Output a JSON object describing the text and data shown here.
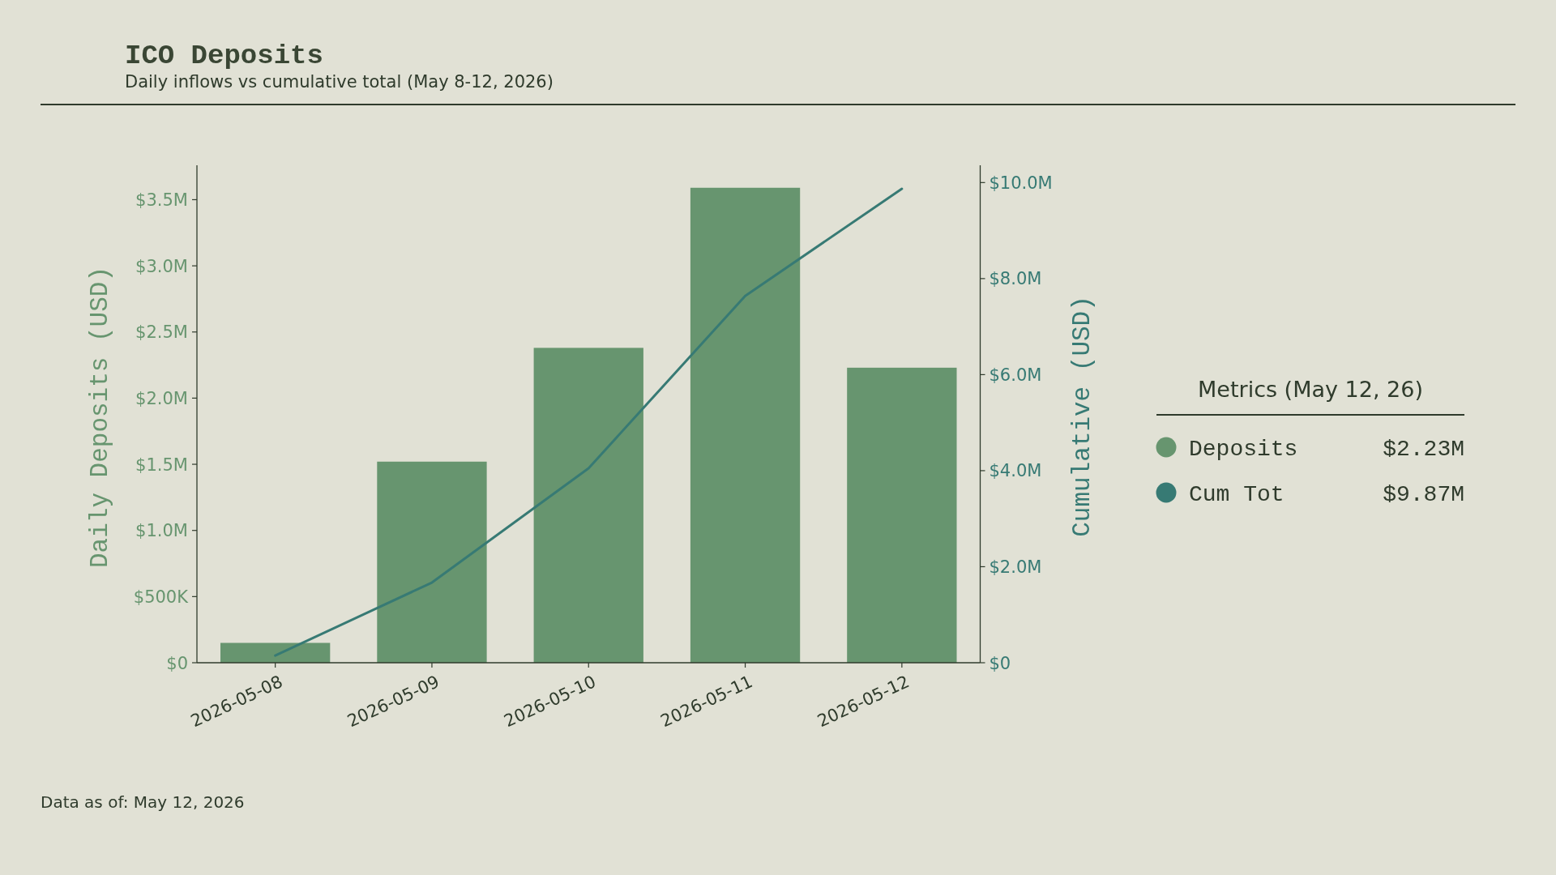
{
  "chart_data": {
    "type": "bar",
    "title": "ICO Deposits",
    "subtitle": "Daily inflows vs cumulative total (May 8-12, 2026)",
    "ylabel": "Daily Deposits (USD)",
    "y2label": "Cumulative (USD)",
    "legend_title": "Metrics (May 12, 26)",
    "categories": [
      "2026-05-08",
      "2026-05-09",
      "2026-05-10",
      "2026-05-11",
      "2026-05-12"
    ],
    "series": [
      {
        "name": "Deposits",
        "color": "#67956f",
        "values": [
          150000,
          1520000,
          2380000,
          3590000,
          2230000
        ]
      },
      {
        "name": "Cum Tot",
        "type": "line",
        "axis": "y2",
        "color": "#377a74",
        "values": [
          150000,
          1670000,
          4050000,
          7640000,
          9870000
        ]
      }
    ],
    "ylim": [
      0,
      3760000
    ],
    "yticks": [
      {
        "value": 0,
        "label": "$0"
      },
      {
        "value": 500000,
        "label": "$500K"
      },
      {
        "value": 1000000,
        "label": "$1.0M"
      },
      {
        "value": 1500000,
        "label": "$1.5M"
      },
      {
        "value": 2000000,
        "label": "$2.0M"
      },
      {
        "value": 2500000,
        "label": "$2.5M"
      },
      {
        "value": 3000000,
        "label": "$3.0M"
      },
      {
        "value": 3500000,
        "label": "$3.5M"
      }
    ],
    "y2lim": [
      0,
      10360000
    ],
    "y2ticks": [
      {
        "value": 0,
        "label": "$0"
      },
      {
        "value": 2000000,
        "label": "$2.0M"
      },
      {
        "value": 4000000,
        "label": "$4.0M"
      },
      {
        "value": 6000000,
        "label": "$6.0M"
      },
      {
        "value": 8000000,
        "label": "$8.0M"
      },
      {
        "value": 10000000,
        "label": "$10.0M"
      }
    ],
    "legend": "right",
    "annotations": [
      "Data as of: May 12, 2026",
      "$2.23M",
      "$9.87M"
    ]
  }
}
